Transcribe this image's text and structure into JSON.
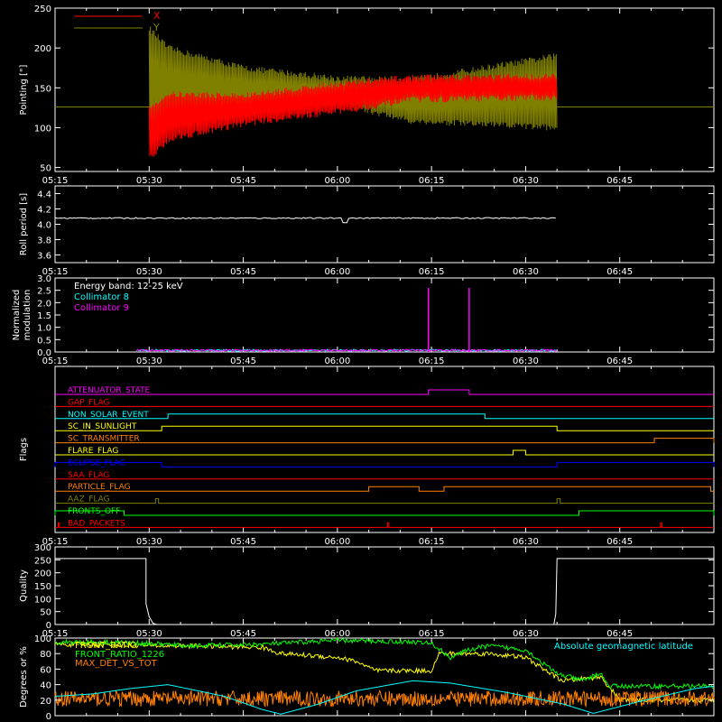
{
  "chart_data": [
    {
      "type": "line",
      "ylabel": "Pointing [\"]",
      "ylim": [
        45,
        250
      ],
      "yticks": [
        50,
        100,
        150,
        200,
        250
      ],
      "xticks": [
        "05:15",
        "05:30",
        "05:45",
        "06:00",
        "06:15",
        "06:30",
        "06:45"
      ],
      "legend": [
        {
          "name": "X",
          "color": "#ff0000"
        },
        {
          "name": "Y",
          "color": "#808000"
        }
      ],
      "series": [
        {
          "name": "X",
          "color": "#ff0000",
          "upper_env": [
            [
              5.5,
              125
            ],
            [
              5.55,
              142
            ],
            [
              5.75,
              140
            ],
            [
              6.0,
              155
            ],
            [
              6.2,
              163
            ],
            [
              6.5833,
              164
            ]
          ],
          "lower_env": [
            [
              5.5,
              60
            ],
            [
              5.55,
              85
            ],
            [
              5.75,
              105
            ],
            [
              6.0,
              120
            ],
            [
              6.2,
              135
            ],
            [
              6.5833,
              138
            ]
          ],
          "flat_value": 126
        },
        {
          "name": "Y",
          "color": "#808000",
          "upper_env": [
            [
              5.5,
              225
            ],
            [
              5.55,
              200
            ],
            [
              5.75,
              175
            ],
            [
              6.0,
              162
            ],
            [
              6.2,
              160
            ],
            [
              6.5833,
              190
            ]
          ],
          "lower_env": [
            [
              5.5,
              95
            ],
            [
              5.55,
              105
            ],
            [
              5.75,
              118
            ],
            [
              6.0,
              130
            ],
            [
              6.2,
              108
            ],
            [
              6.5833,
              100
            ]
          ],
          "flat_value": 126
        }
      ]
    },
    {
      "type": "line",
      "ylabel": "Roll period [s]",
      "ylim": [
        3.5,
        4.5
      ],
      "yticks": [
        "3.6",
        "3.8",
        "4.0",
        "4.2",
        "4.4"
      ],
      "xticks": [
        "05:15",
        "05:30",
        "05:45",
        "06:00",
        "06:15",
        "06:30",
        "06:45"
      ],
      "series": [
        {
          "name": "",
          "color": "#ffffff",
          "x_range": [
            5.25,
            6.5833
          ],
          "value": 4.08
        }
      ]
    },
    {
      "type": "line",
      "ylabel": [
        "Normalized",
        "modulation"
      ],
      "ylim": [
        0,
        3.0
      ],
      "yticks": [
        "0.0",
        "0.5",
        "1.0",
        "1.5",
        "2.0",
        "2.5",
        "3.0"
      ],
      "xticks": [
        "05:15",
        "05:30",
        "05:45",
        "06:00",
        "06:15",
        "06:30",
        "06:45"
      ],
      "legend": [
        {
          "name": "Energy band: 12-25 keV",
          "color": "#ffffff"
        },
        {
          "name": "Collimator 8",
          "color": "#00ffff"
        },
        {
          "name": "Collimator 9",
          "color": "#ff00ff"
        }
      ],
      "series": [
        {
          "name": "Collimator 8",
          "color": "#00ffff",
          "x_range": [
            5.4667,
            6.5833
          ],
          "value": 0.05
        },
        {
          "name": "Collimator 9",
          "color": "#ff00ff",
          "x_range": [
            5.4667,
            6.5833
          ],
          "value": 0.05,
          "spikes": [
            [
              6.2417,
              2.6
            ],
            [
              6.35,
              2.6
            ]
          ]
        }
      ]
    },
    {
      "type": "line",
      "ylabel": "Flags",
      "xticks": [
        "05:15",
        "05:30",
        "05:45",
        "06:00",
        "06:15",
        "06:30",
        "06:45"
      ],
      "flags": [
        {
          "name": "ATTENUATOR_STATE",
          "color": "#ff00ff",
          "on": [
            [
              6.2417,
              6.35
            ]
          ]
        },
        {
          "name": "GAP_FLAG",
          "color": "#ff0000",
          "on": []
        },
        {
          "name": "NON_SOLAR_EVENT",
          "color": "#00ffff",
          "on": [
            [
              5.55,
              6.3917
            ]
          ]
        },
        {
          "name": "SC_IN_SUNLIGHT",
          "color": "#ffff00",
          "on": [
            [
              5.5333,
              6.5833
            ]
          ]
        },
        {
          "name": "SC_TRANSMITTER",
          "color": "#ff8000",
          "on": [
            [
              6.8417,
              7.0
            ]
          ]
        },
        {
          "name": "FLARE_FLAG",
          "color": "#ffff00",
          "on": [
            [
              6.4667,
              6.5
            ]
          ]
        },
        {
          "name": "ECLIPSE_FLAG",
          "color": "#0000ff",
          "on": [
            [
              5.25,
              5.5333
            ],
            [
              6.5833,
              7.0
            ]
          ]
        },
        {
          "name": "SAA_FLAG",
          "color": "#ff0000",
          "on": []
        },
        {
          "name": "PARTICLE_FLAG",
          "color": "#ff8000",
          "on": [
            [
              6.0833,
              6.2167
            ],
            [
              6.2833,
              6.9917
            ]
          ]
        },
        {
          "name": "AAZ_FLAG",
          "color": "#808000",
          "on": [
            [
              5.5167,
              5.525
            ],
            [
              6.5833,
              6.5917
            ]
          ]
        },
        {
          "name": "FRONTS_OFF",
          "color": "#00ff00",
          "on": [
            [
              5.25,
              5.4333
            ],
            [
              6.6417,
              7.0
            ]
          ]
        },
        {
          "name": "BAD_PACKETS",
          "color": "#ff0000",
          "on": [
            [
              5.2583,
              5.2617
            ],
            [
              6.1333,
              6.1367
            ],
            [
              6.8583,
              6.8617
            ]
          ]
        }
      ]
    },
    {
      "type": "line",
      "ylabel": "Quality",
      "ylim": [
        0,
        300
      ],
      "yticks": [
        "0",
        "50",
        "100",
        "150",
        "200",
        "250",
        "300"
      ],
      "xticks": [
        "05:15",
        "05:30",
        "05:45",
        "06:00",
        "06:15",
        "06:30",
        "06:45"
      ],
      "series": [
        {
          "name": "",
          "color": "#ffffff",
          "points": [
            [
              5.25,
              255
            ],
            [
              5.4917,
              255
            ],
            [
              5.4917,
              80
            ],
            [
              5.5,
              30
            ],
            [
              5.51,
              5
            ],
            [
              5.52,
              0
            ],
            [
              6.575,
              0
            ],
            [
              6.58,
              40
            ],
            [
              6.5833,
              255
            ],
            [
              7.0,
              255
            ]
          ]
        }
      ]
    },
    {
      "type": "line",
      "ylabel": "Degrees or %",
      "ylim": [
        0,
        100
      ],
      "yticks": [
        "0",
        "20",
        "40",
        "60",
        "80",
        "100"
      ],
      "legend": [
        {
          "name": "FRONT_RATIO",
          "color": "#ffff00"
        },
        {
          "name": "FRONT_RATIO_1226",
          "color": "#00ff00"
        },
        {
          "name": "MAX_DET_VS_TOT",
          "color": "#ff8000"
        },
        {
          "name": "Absolute geomagnetic latitude",
          "color": "#00ffff"
        }
      ],
      "series": [
        {
          "name": "FRONT_RATIO",
          "color": "#ffff00",
          "points": [
            [
              5.25,
              92
            ],
            [
              5.54,
              90
            ],
            [
              5.6,
              90
            ],
            [
              5.8,
              88
            ],
            [
              5.85,
              80
            ],
            [
              6.0,
              75
            ],
            [
              6.05,
              70
            ],
            [
              6.1,
              58
            ],
            [
              6.25,
              58
            ],
            [
              6.27,
              80
            ],
            [
              6.4,
              80
            ],
            [
              6.5,
              75
            ],
            [
              6.58,
              50
            ],
            [
              6.6,
              45
            ],
            [
              6.7,
              50
            ],
            [
              6.75,
              20
            ],
            [
              7.0,
              20
            ]
          ]
        },
        {
          "name": "FRONT_RATIO_1226",
          "color": "#00ff00",
          "points": [
            [
              5.25,
              95
            ],
            [
              5.4,
              95
            ],
            [
              5.54,
              92
            ],
            [
              5.6,
              90
            ],
            [
              5.8,
              92
            ],
            [
              6.0,
              97
            ],
            [
              6.2,
              95
            ],
            [
              6.25,
              93
            ],
            [
              6.3,
              75
            ],
            [
              6.35,
              85
            ],
            [
              6.4,
              90
            ],
            [
              6.5,
              85
            ],
            [
              6.58,
              55
            ],
            [
              6.65,
              45
            ],
            [
              6.7,
              55
            ],
            [
              6.72,
              38
            ],
            [
              7.0,
              38
            ]
          ]
        },
        {
          "name": "MAX_DET_VS_TOT",
          "color": "#ff8000",
          "x_range": [
            5.25,
            7.0
          ],
          "mean": 22,
          "spread": 10
        },
        {
          "name": "Absolute geomagnetic latitude",
          "color": "#00ffff",
          "points": [
            [
              5.25,
              25
            ],
            [
              5.35,
              28
            ],
            [
              5.45,
              35
            ],
            [
              5.55,
              40
            ],
            [
              5.7,
              25
            ],
            [
              5.8,
              8
            ],
            [
              5.85,
              2
            ],
            [
              5.95,
              15
            ],
            [
              6.05,
              32
            ],
            [
              6.2,
              45
            ],
            [
              6.3,
              42
            ],
            [
              6.45,
              30
            ],
            [
              6.6,
              15
            ],
            [
              6.68,
              3
            ],
            [
              6.8,
              18
            ],
            [
              6.95,
              35
            ],
            [
              7.0,
              38
            ]
          ]
        }
      ]
    }
  ]
}
